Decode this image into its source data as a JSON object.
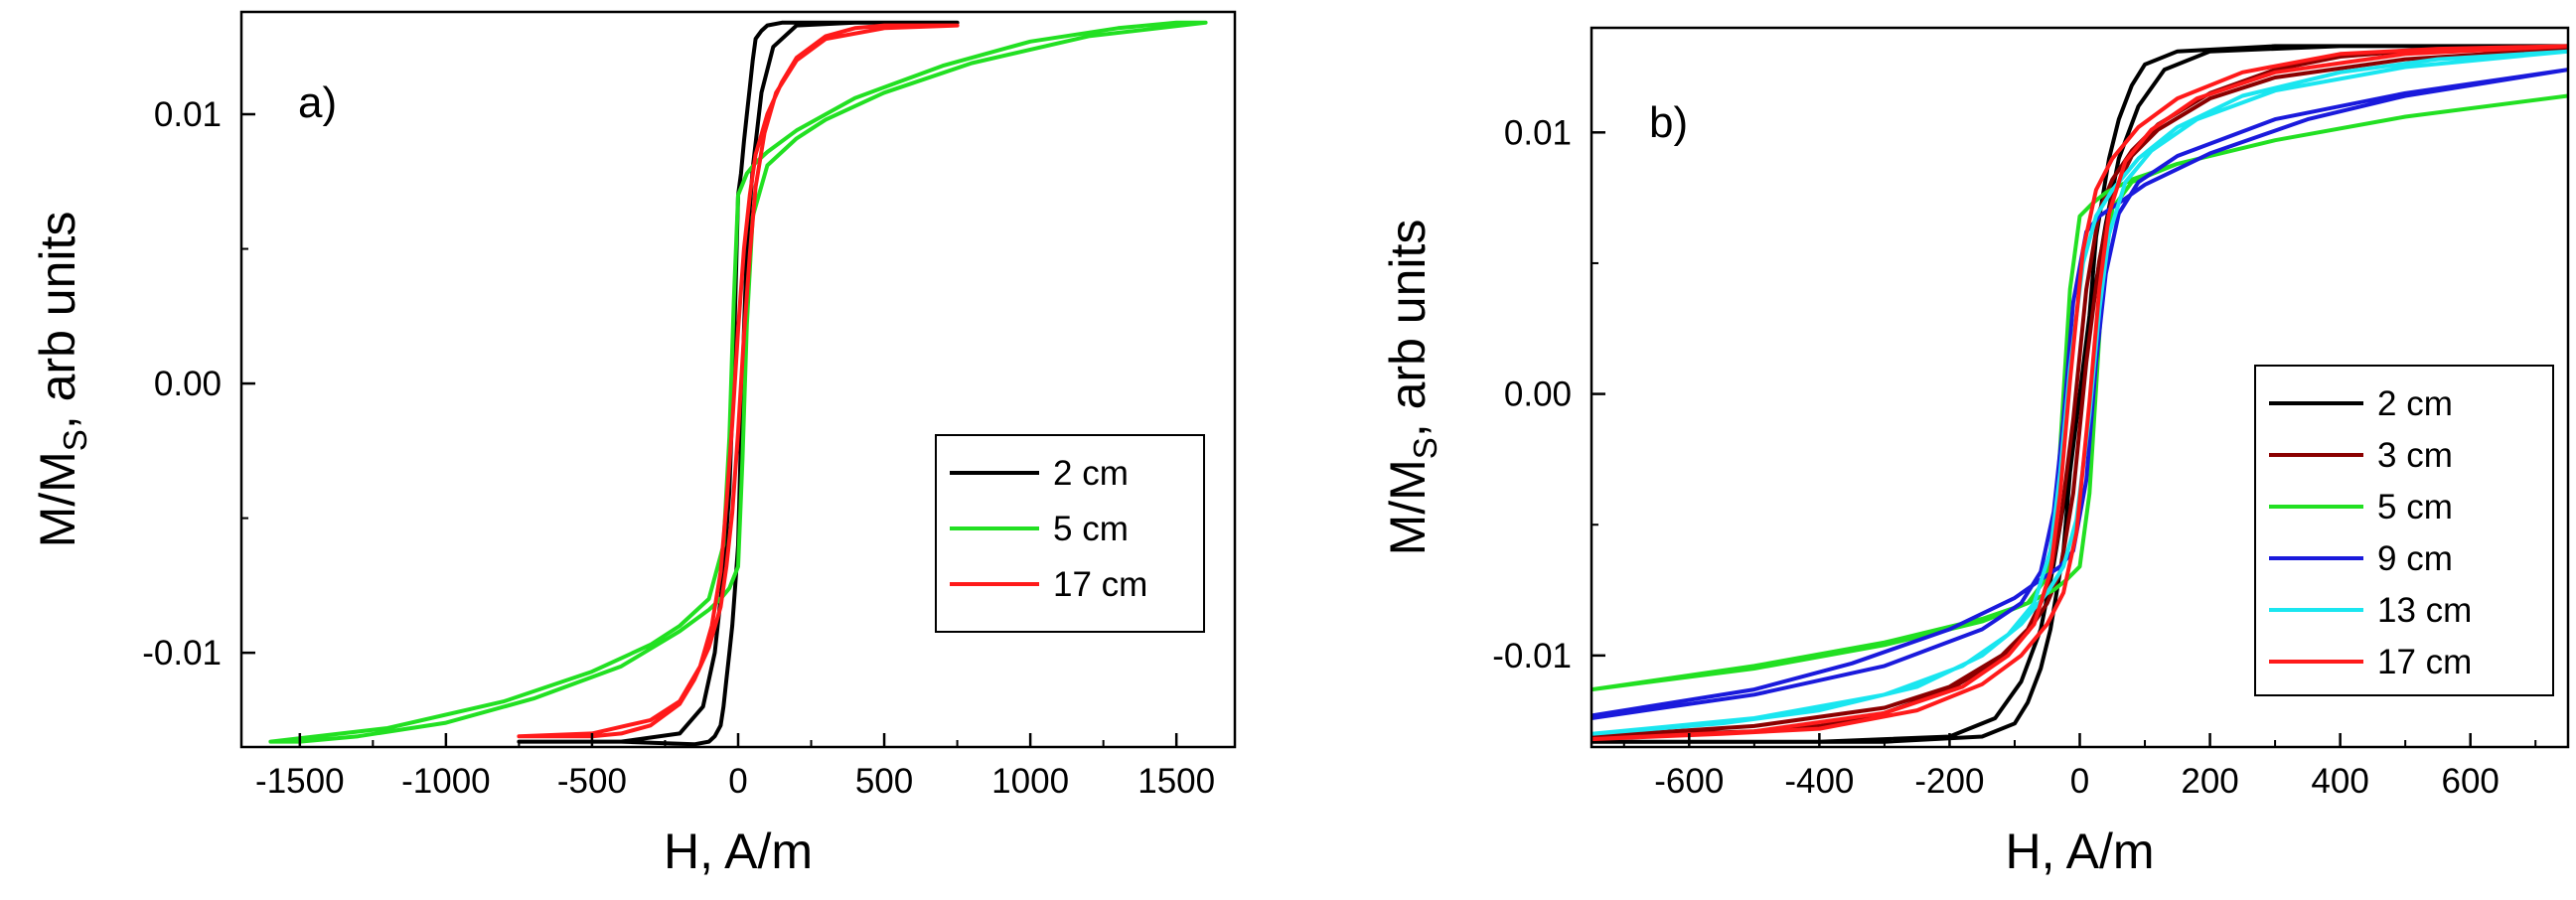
{
  "chart_data": [
    {
      "type": "line",
      "panel_label": "a)",
      "xlabel": "H, A/m",
      "ylabel_main": "M/M",
      "ylabel_sub": "S",
      "ylabel_rest": ", arb units",
      "xlim": [
        -1700,
        1700
      ],
      "ylim": [
        -0.0135,
        0.0138
      ],
      "xticks": [
        -1500,
        -1000,
        -500,
        0,
        500,
        1000,
        1500
      ],
      "xtick_labels": [
        "-1500",
        "-1000",
        "-500",
        "0",
        "500",
        "1000",
        "1500"
      ],
      "yticks": [
        -0.01,
        0.0,
        0.01
      ],
      "ytick_labels": [
        "-0.01",
        "0.00",
        "0.01"
      ],
      "legend_position": "right-middle",
      "series": [
        {
          "name": "2 cm",
          "color": "#000000",
          "upper_x": [
            -750,
            -400,
            -200,
            -120,
            -80,
            -50,
            -30,
            -20,
            -10,
            0,
            10,
            20,
            30,
            40,
            50,
            60,
            80,
            100,
            150,
            400,
            750
          ],
          "upper_y": [
            -0.0133,
            -0.0133,
            -0.013,
            -0.012,
            -0.01,
            -0.007,
            -0.004,
            -0.001,
            0.003,
            0.007,
            0.0078,
            0.009,
            0.01,
            0.011,
            0.012,
            0.0128,
            0.0131,
            0.0133,
            0.0134,
            0.0134,
            0.0134
          ],
          "lower_x": [
            750,
            400,
            200,
            120,
            80,
            50,
            30,
            20,
            10,
            0,
            -10,
            -20,
            -30,
            -40,
            -50,
            -60,
            -80,
            -100,
            -150,
            -400,
            -750
          ],
          "lower_y": [
            0.0134,
            0.0134,
            0.0133,
            0.0125,
            0.0108,
            0.008,
            0.005,
            0.002,
            -0.002,
            -0.006,
            -0.0075,
            -0.009,
            -0.01,
            -0.011,
            -0.012,
            -0.0127,
            -0.0131,
            -0.0133,
            -0.0134,
            -0.0133,
            -0.0133
          ]
        },
        {
          "name": "5 cm",
          "color": "#22e022",
          "upper_x": [
            -1600,
            -1200,
            -800,
            -500,
            -300,
            -200,
            -100,
            -50,
            -30,
            -15,
            0,
            15,
            30,
            60,
            100,
            200,
            400,
            700,
            1000,
            1300,
            1500,
            1600
          ],
          "upper_y": [
            -0.0133,
            -0.0128,
            -0.0118,
            -0.0107,
            -0.0097,
            -0.009,
            -0.008,
            -0.006,
            -0.002,
            0.003,
            0.007,
            0.0074,
            0.0078,
            0.0082,
            0.0086,
            0.0094,
            0.0106,
            0.0118,
            0.0127,
            0.0132,
            0.0134,
            0.0134
          ],
          "lower_x": [
            1600,
            1200,
            800,
            500,
            300,
            200,
            100,
            50,
            30,
            15,
            0,
            -15,
            -30,
            -60,
            -100,
            -200,
            -400,
            -700,
            -1000,
            -1300,
            -1500,
            -1600
          ],
          "lower_y": [
            0.0134,
            0.0129,
            0.0119,
            0.0108,
            0.0098,
            0.0091,
            0.0081,
            0.0062,
            0.0022,
            -0.0028,
            -0.0068,
            -0.0072,
            -0.0076,
            -0.008,
            -0.0084,
            -0.0092,
            -0.0105,
            -0.0117,
            -0.0126,
            -0.0131,
            -0.0133,
            -0.0133
          ]
        },
        {
          "name": "17 cm",
          "color": "#ff1a1a",
          "upper_x": [
            -750,
            -500,
            -300,
            -200,
            -130,
            -90,
            -60,
            -40,
            -20,
            0,
            20,
            40,
            60,
            100,
            150,
            200,
            300,
            400,
            500,
            750
          ],
          "upper_y": [
            -0.0131,
            -0.013,
            -0.0125,
            -0.0118,
            -0.0105,
            -0.009,
            -0.007,
            -0.0045,
            -0.0015,
            0.002,
            0.005,
            0.007,
            0.0085,
            0.01,
            0.0112,
            0.0121,
            0.0129,
            0.0132,
            0.0133,
            0.0133
          ],
          "lower_x": [
            750,
            500,
            300,
            200,
            130,
            90,
            60,
            40,
            20,
            0,
            -20,
            -40,
            -60,
            -100,
            -150,
            -200,
            -300,
            -400,
            -500,
            -750
          ],
          "lower_y": [
            0.0133,
            0.0132,
            0.0128,
            0.012,
            0.0108,
            0.0093,
            0.0073,
            0.0048,
            0.0018,
            -0.0018,
            -0.0048,
            -0.0068,
            -0.0083,
            -0.0098,
            -0.011,
            -0.0119,
            -0.0127,
            -0.013,
            -0.0131,
            -0.0131
          ]
        }
      ],
      "legend": [
        "2 cm",
        "5 cm",
        "17 cm"
      ]
    },
    {
      "type": "line",
      "panel_label": "b)",
      "xlabel": "H, A/m",
      "ylabel_main": "M/M",
      "ylabel_sub": "S",
      "ylabel_rest": ", arb units",
      "xlim": [
        -750,
        750
      ],
      "ylim": [
        -0.0135,
        0.014
      ],
      "xticks": [
        -600,
        -400,
        -200,
        0,
        200,
        400,
        600
      ],
      "xtick_labels": [
        "-600",
        "-400",
        "-200",
        "0",
        "200",
        "400",
        "600"
      ],
      "yticks": [
        -0.01,
        0.0,
        0.01
      ],
      "ytick_labels": [
        "-0.01",
        "0.00",
        "0.01"
      ],
      "legend_position": "right-middle",
      "series": [
        {
          "name": "2 cm",
          "color": "#000000",
          "upper_x": [
            -750,
            -400,
            -200,
            -130,
            -90,
            -60,
            -40,
            -20,
            0,
            15,
            25,
            35,
            45,
            60,
            80,
            100,
            150,
            300,
            750
          ],
          "upper_y": [
            -0.0133,
            -0.0133,
            -0.0131,
            -0.0124,
            -0.011,
            -0.009,
            -0.0065,
            -0.0035,
            0.0,
            0.003,
            0.006,
            0.0075,
            0.009,
            0.0105,
            0.0118,
            0.0126,
            0.0131,
            0.0133,
            0.0133
          ],
          "lower_x": [
            750,
            400,
            200,
            130,
            90,
            60,
            40,
            20,
            0,
            -15,
            -25,
            -35,
            -45,
            -60,
            -80,
            -100,
            -150,
            -300,
            -750
          ],
          "lower_y": [
            0.0133,
            0.0133,
            0.0131,
            0.0124,
            0.011,
            0.009,
            0.0065,
            0.0035,
            0.0,
            -0.003,
            -0.006,
            -0.0075,
            -0.009,
            -0.0105,
            -0.0118,
            -0.0126,
            -0.0131,
            -0.0133,
            -0.0133
          ]
        },
        {
          "name": "3 cm",
          "color": "#8b0000",
          "upper_x": [
            -750,
            -500,
            -300,
            -200,
            -120,
            -80,
            -50,
            -30,
            -10,
            10,
            30,
            50,
            80,
            120,
            200,
            300,
            400,
            500,
            750
          ],
          "upper_y": [
            -0.0131,
            -0.0127,
            -0.012,
            -0.0112,
            -0.01,
            -0.009,
            -0.0075,
            -0.005,
            -0.001,
            0.004,
            0.007,
            0.0082,
            0.0093,
            0.0103,
            0.0115,
            0.0124,
            0.0129,
            0.0131,
            0.0132
          ],
          "lower_x": [
            750,
            500,
            300,
            200,
            120,
            80,
            50,
            30,
            10,
            -10,
            -30,
            -50,
            -80,
            -120,
            -200,
            -300,
            -400,
            -500,
            -750
          ],
          "lower_y": [
            0.0132,
            0.0128,
            0.0121,
            0.0113,
            0.0101,
            0.0091,
            0.0076,
            0.0051,
            0.0012,
            -0.0038,
            -0.0068,
            -0.008,
            -0.0091,
            -0.0101,
            -0.0113,
            -0.0122,
            -0.0127,
            -0.0129,
            -0.0131
          ]
        },
        {
          "name": "5 cm",
          "color": "#22e022",
          "upper_x": [
            -750,
            -500,
            -300,
            -150,
            -80,
            -50,
            -35,
            -25,
            -15,
            0,
            20,
            40,
            80,
            150,
            300,
            500,
            750
          ],
          "upper_y": [
            -0.0113,
            -0.0105,
            -0.0096,
            -0.0087,
            -0.008,
            -0.007,
            -0.004,
            0.0,
            0.004,
            0.0068,
            0.0073,
            0.0077,
            0.0082,
            0.0088,
            0.0097,
            0.0106,
            0.0114
          ],
          "lower_x": [
            750,
            500,
            300,
            150,
            80,
            50,
            35,
            25,
            15,
            0,
            -20,
            -40,
            -80,
            -150,
            -300,
            -500,
            -750
          ],
          "lower_y": [
            0.0114,
            0.0106,
            0.0097,
            0.0088,
            0.0081,
            0.0071,
            0.0042,
            0.0002,
            -0.0038,
            -0.0066,
            -0.0071,
            -0.0075,
            -0.008,
            -0.0086,
            -0.0095,
            -0.0104,
            -0.0113
          ]
        },
        {
          "name": "9 cm",
          "color": "#1a1adc",
          "upper_x": [
            -750,
            -500,
            -300,
            -150,
            -90,
            -60,
            -40,
            -25,
            -10,
            10,
            30,
            60,
            100,
            200,
            350,
            500,
            750
          ],
          "upper_y": [
            -0.0124,
            -0.0115,
            -0.0104,
            -0.009,
            -0.008,
            -0.0068,
            -0.0045,
            -0.001,
            0.0035,
            0.0062,
            0.0068,
            0.0073,
            0.008,
            0.0092,
            0.0105,
            0.0114,
            0.0124
          ],
          "lower_x": [
            750,
            500,
            300,
            150,
            90,
            60,
            40,
            25,
            10,
            -10,
            -30,
            -60,
            -100,
            -200,
            -350,
            -500,
            -750
          ],
          "lower_y": [
            0.0124,
            0.0115,
            0.0105,
            0.0091,
            0.0081,
            0.0069,
            0.0046,
            0.0012,
            -0.0033,
            -0.006,
            -0.0066,
            -0.0071,
            -0.0078,
            -0.009,
            -0.0103,
            -0.0113,
            -0.0123
          ]
        },
        {
          "name": "13 cm",
          "color": "#1ae6f0",
          "upper_x": [
            -750,
            -500,
            -300,
            -180,
            -110,
            -70,
            -45,
            -30,
            -15,
            5,
            25,
            50,
            90,
            150,
            250,
            400,
            550,
            750
          ],
          "upper_y": [
            -0.013,
            -0.0124,
            -0.0115,
            -0.0104,
            -0.0092,
            -0.008,
            -0.006,
            -0.003,
            0.001,
            0.005,
            0.0068,
            0.0078,
            0.009,
            0.0102,
            0.0114,
            0.0123,
            0.0128,
            0.0131
          ],
          "lower_x": [
            750,
            500,
            300,
            180,
            110,
            70,
            45,
            30,
            15,
            -5,
            -25,
            -50,
            -90,
            -150,
            -250,
            -400,
            -550,
            -750
          ],
          "lower_y": [
            0.0131,
            0.0125,
            0.0116,
            0.0105,
            0.0093,
            0.0081,
            0.0061,
            0.0032,
            -0.0008,
            -0.0048,
            -0.0066,
            -0.0076,
            -0.0088,
            -0.01,
            -0.0112,
            -0.0121,
            -0.0126,
            -0.013
          ]
        },
        {
          "name": "17 cm",
          "color": "#ff1a1a",
          "upper_x": [
            -750,
            -500,
            -300,
            -180,
            -110,
            -70,
            -45,
            -30,
            -15,
            5,
            25,
            50,
            90,
            150,
            250,
            400,
            550,
            750
          ],
          "upper_y": [
            -0.0132,
            -0.0129,
            -0.0122,
            -0.0112,
            -0.01,
            -0.0088,
            -0.0068,
            -0.0038,
            0.0005,
            0.0055,
            0.0078,
            0.009,
            0.0102,
            0.0113,
            0.0123,
            0.013,
            0.0132,
            0.0133
          ],
          "lower_x": [
            750,
            500,
            300,
            180,
            110,
            70,
            45,
            30,
            15,
            -5,
            -25,
            -50,
            -90,
            -150,
            -250,
            -400,
            -550,
            -750
          ],
          "lower_y": [
            0.0133,
            0.013,
            0.0123,
            0.0113,
            0.0101,
            0.0089,
            0.0069,
            0.004,
            -0.0003,
            -0.0053,
            -0.0076,
            -0.0088,
            -0.01,
            -0.0111,
            -0.0121,
            -0.0128,
            -0.013,
            -0.0132
          ]
        }
      ],
      "legend": [
        "2 cm",
        "3 cm",
        "5 cm",
        "9 cm",
        "13 cm",
        "17 cm"
      ]
    }
  ]
}
